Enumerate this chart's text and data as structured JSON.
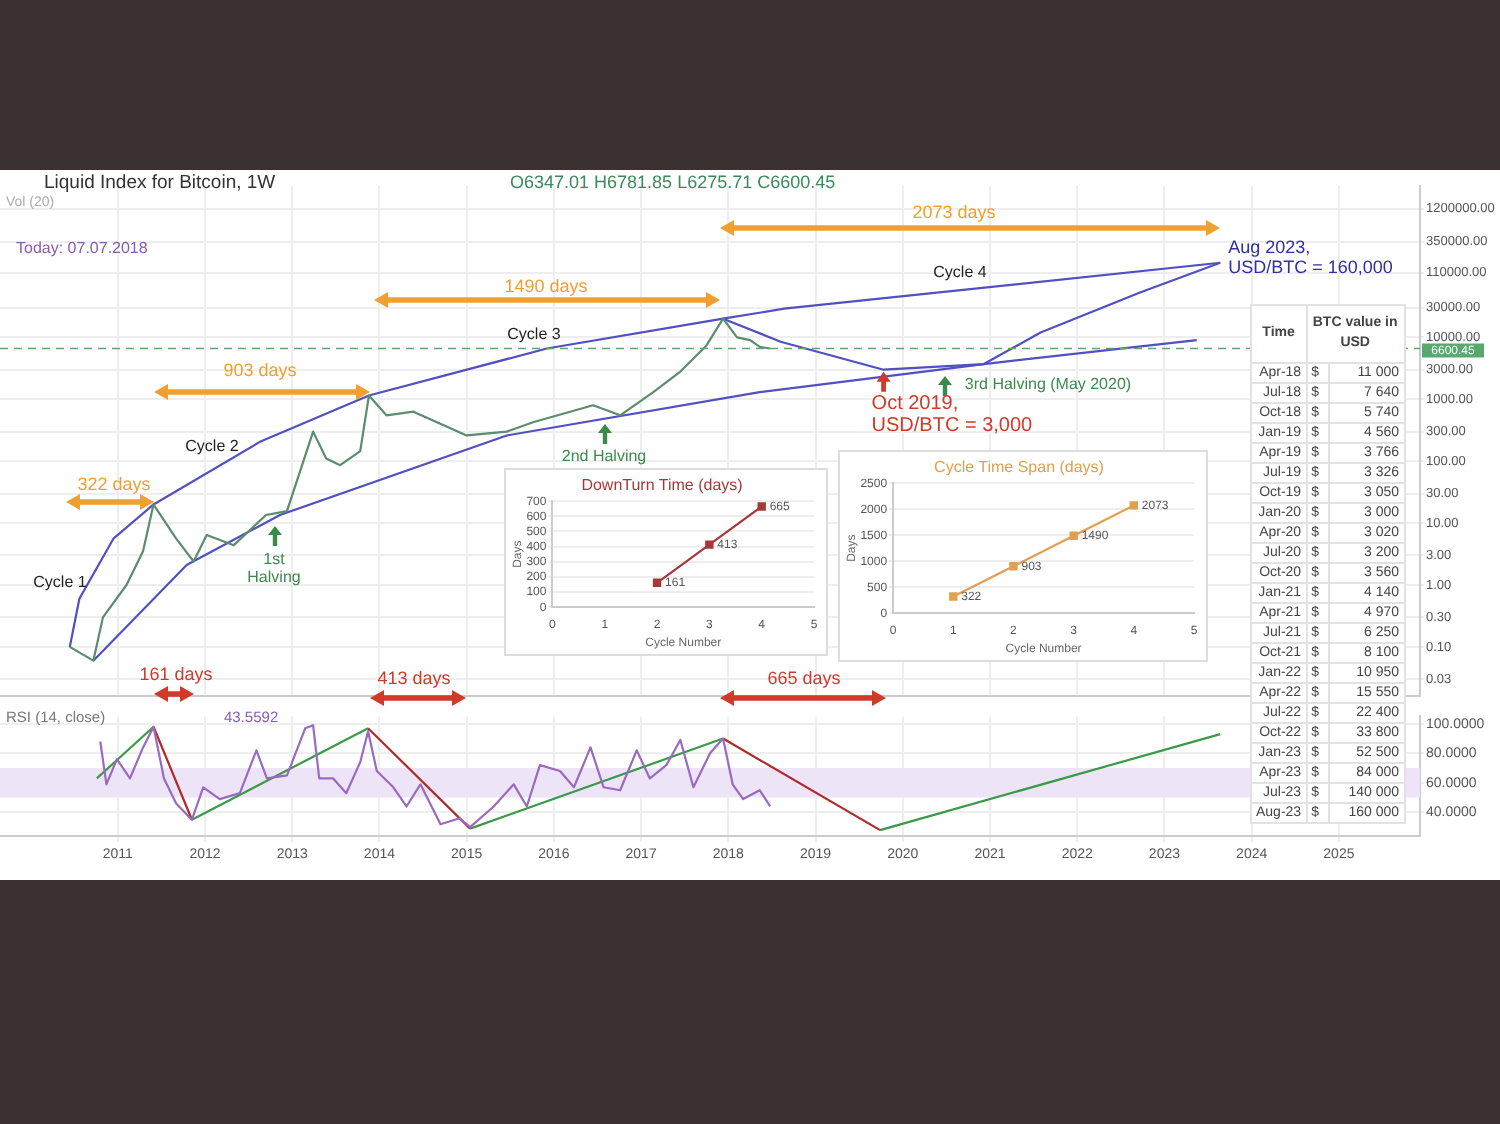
{
  "chart_data": [
    {
      "type": "line",
      "title": "Liquid Index for Bitcoin, 1W",
      "xlim": [
        2009.65,
        2025.93
      ],
      "xticks": [
        2011,
        2012,
        2013,
        2014,
        2015,
        2016,
        2017,
        2018,
        2019,
        2020,
        2021,
        2022,
        2023,
        2024,
        2025
      ],
      "ylim": [
        0.016,
        2800000
      ],
      "yticks": [
        {
          "value": 1200000,
          "label": "1200000.00"
        },
        {
          "value": 350000,
          "label": "350000.00"
        },
        {
          "value": 110000,
          "label": "110000.00"
        },
        {
          "value": 30000,
          "label": "30000.00"
        },
        {
          "value": 10000,
          "label": "10000.00"
        },
        {
          "value": 3000,
          "label": "3000.00"
        },
        {
          "value": 1000,
          "label": "1000.00"
        },
        {
          "value": 300,
          "label": "300.00"
        },
        {
          "value": 100,
          "label": "100.00"
        },
        {
          "value": 30,
          "label": "30.00"
        },
        {
          "value": 10,
          "label": "10.00"
        },
        {
          "value": 3,
          "label": "3.00"
        },
        {
          "value": 1,
          "label": "1.00"
        },
        {
          "value": 0.3,
          "label": "0.30"
        },
        {
          "value": 0.1,
          "label": "0.10"
        },
        {
          "value": 0.03,
          "label": "0.03"
        }
      ],
      "log": true,
      "grid": true,
      "tick_labels": "y",
      "marker": "none",
      "series": [
        {
          "color": "#5b8c6e",
          "x": [
            2010.45,
            2010.72,
            2010.83,
            2011.1,
            2011.29,
            2011.41,
            2011.67,
            2011.87,
            2012.02,
            2012.33,
            2012.7,
            2012.94,
            2013.24,
            2013.39,
            2013.55,
            2013.78,
            2013.88,
            2014.08,
            2014.39,
            2015.0,
            2015.46,
            2015.77,
            2016.45,
            2016.76,
            2017.14,
            2017.45,
            2017.75,
            2017.94,
            2018.1,
            2018.25,
            2018.36,
            2018.48
          ],
          "values": [
            0.1,
            0.06,
            0.3,
            1,
            3.5,
            20,
            5.6,
            2.4,
            6.4,
            4.4,
            13.5,
            15.6,
            300,
            110,
            86,
            145,
            1150,
            550,
            630,
            260,
            300,
            430,
            800,
            550,
            1300,
            2800,
            7400,
            20000,
            10000,
            9000,
            7000,
            6600
          ]
        },
        {
          "color": "#5050c0",
          "x": [
            2010.45,
            2010.56,
            2010.95,
            2011.41,
            2012.63,
            2013.88,
            2015.92,
            2017.94,
            2018.64,
            2023.64
          ],
          "values": [
            0.1,
            0.6,
            5.6,
            20,
            205,
            1150,
            6600,
            20000,
            29000,
            160000
          ]
        },
        {
          "color": "#5050c0",
          "x": [
            2010.72,
            2011.79,
            2012.86,
            2015.46,
            2018.36,
            2020.93,
            2023.37
          ],
          "values": [
            0.06,
            2.1,
            13.5,
            260,
            1300,
            3700,
            9000
          ]
        },
        {
          "color": "#5050c0",
          "x": [
            2017.94,
            2018.6,
            2019.78,
            2020.93,
            2021.58,
            2022.72,
            2023.64
          ],
          "values": [
            20000,
            8500,
            3000,
            3700,
            12000,
            53000,
            160000
          ]
        }
      ],
      "ref_lines": [
        {
          "axis": "y",
          "value": 6600.45,
          "label": "6600.45",
          "color": "#5aa870",
          "line_style": "dashed"
        }
      ],
      "annotations": [
        "O6347.01 H6781.85 L6275.71 C6600.45",
        "Vol (20)",
        "Today: 07.07.2018",
        "Cycle 1",
        "Cycle 2",
        "Cycle 3",
        "Cycle 4",
        "322 days",
        "903 days",
        "1490 days",
        "2073 days",
        "161 days",
        "413 days",
        "665 days",
        "1st\nHalving",
        "2nd Halving",
        "3rd Halving (May 2020)",
        {
          "text": "Oct 2019,\nUSD/BTC = 3,000",
          "x": 2019.78,
          "y": 3000
        },
        {
          "text": "Aug 2023,\nUSD/BTC = 160,000",
          "x": 2023.64,
          "y": 160000
        }
      ]
    },
    {
      "type": "line",
      "xlim": [
        2009.65,
        2025.93
      ],
      "xticks": [
        2011,
        2012,
        2013,
        2014,
        2015,
        2016,
        2017,
        2018,
        2019,
        2020,
        2021,
        2022,
        2023,
        2024,
        2025
      ],
      "ylim": [
        24,
        105
      ],
      "yticks": [
        {
          "value": 100,
          "label": "100.0000"
        },
        {
          "value": 80,
          "label": "80.0000"
        },
        {
          "value": 60,
          "label": "60.0000"
        },
        {
          "value": 40,
          "label": "40.0000"
        }
      ],
      "grid": true,
      "marker": "none",
      "bands": [
        {
          "axis": "y",
          "from": 50,
          "to": 70,
          "color": "#eee4f8"
        }
      ],
      "annotations": [
        "RSI (14, close)",
        "43.5592"
      ],
      "series": [
        {
          "color": "#9a6ac0",
          "x": [
            2010.8,
            2010.87,
            2010.99,
            2011.14,
            2011.29,
            2011.41,
            2011.53,
            2011.67,
            2011.85,
            2011.98,
            2012.17,
            2012.4,
            2012.59,
            2012.71,
            2012.94,
            2013.15,
            2013.24,
            2013.31,
            2013.47,
            2013.62,
            2013.78,
            2013.87,
            2013.97,
            2014.16,
            2014.31,
            2014.47,
            2014.7,
            2014.92,
            2015.04,
            2015.31,
            2015.54,
            2015.69,
            2015.84,
            2016.07,
            2016.23,
            2016.42,
            2016.57,
            2016.76,
            2016.95,
            2017.1,
            2017.29,
            2017.45,
            2017.6,
            2017.79,
            2017.94,
            2018.05,
            2018.17,
            2018.36,
            2018.48
          ],
          "values": [
            88,
            59,
            76,
            63,
            84,
            98,
            63,
            46,
            35,
            57,
            49,
            53,
            82,
            63,
            65,
            97,
            99,
            63,
            63,
            53,
            74,
            95,
            68,
            57,
            44,
            59,
            32,
            36,
            30,
            44,
            59,
            44,
            72,
            68,
            57,
            84,
            57,
            55,
            82,
            63,
            72,
            89,
            57,
            80,
            90,
            59,
            49,
            55,
            44
          ]
        },
        {
          "color": "#3a9a48",
          "x": [
            2010.76,
            2011.41
          ],
          "values": [
            63,
            98
          ]
        },
        {
          "color": "#b02a2a",
          "x": [
            2011.41,
            2011.85
          ],
          "values": [
            98,
            35
          ]
        },
        {
          "color": "#3a9a48",
          "x": [
            2011.85,
            2013.87
          ],
          "values": [
            35,
            97
          ]
        },
        {
          "color": "#b02a2a",
          "x": [
            2013.87,
            2015.04
          ],
          "values": [
            97,
            29
          ]
        },
        {
          "color": "#3a9a48",
          "x": [
            2015.04,
            2017.94
          ],
          "values": [
            29,
            90
          ]
        },
        {
          "color": "#b02a2a",
          "x": [
            2017.94,
            2019.74
          ],
          "values": [
            90,
            28
          ]
        },
        {
          "color": "#3a9a48",
          "x": [
            2019.74,
            2023.64
          ],
          "values": [
            28,
            93
          ]
        }
      ]
    },
    {
      "type": "line",
      "title": "DownTurn Time (days)",
      "xlabel": "Cycle Number",
      "ylabel": "Days",
      "x": [
        2,
        3,
        4
      ],
      "xlim": [
        0,
        5
      ],
      "xticks": [
        0,
        1,
        2,
        3,
        4,
        5
      ],
      "ylim": [
        0,
        700
      ],
      "yticks": [
        0,
        100,
        200,
        300,
        400,
        500,
        600,
        700
      ],
      "grid": "y",
      "marker": "square",
      "data_labels": true,
      "series": [
        {
          "color": "#a83838",
          "values": [
            161,
            413,
            665
          ]
        }
      ]
    },
    {
      "type": "line",
      "title": "Cycle Time Span (days)",
      "xlabel": "Cycle Number",
      "ylabel": "Days",
      "x": [
        1,
        2,
        3,
        4
      ],
      "xlim": [
        0,
        5
      ],
      "xticks": [
        0,
        1,
        2,
        3,
        4,
        5
      ],
      "ylim": [
        0,
        2500
      ],
      "yticks": [
        0,
        500,
        1000,
        1500,
        2000,
        2500
      ],
      "grid": "y",
      "marker": "square",
      "data_labels": true,
      "series": [
        {
          "color": "#e0a050",
          "values": [
            322,
            903,
            1490,
            2073
          ]
        }
      ]
    },
    {
      "type": "other",
      "annotations": [
        "Time",
        "BTC value in USD",
        "Apr-18 $ 11 000",
        "Jul-18 $ 7 640",
        "Oct-18 $ 5 740",
        "Jan-19 $ 4 560",
        "Apr-19 $ 3 766",
        "Jul-19 $ 3 326",
        "Oct-19 $ 3 050",
        "Jan-20 $ 3 000",
        "Apr-20 $ 3 020",
        "Jul-20 $ 3 200",
        "Oct-20 $ 3 560",
        "Jan-21 $ 4 140",
        "Apr-21 $ 4 970",
        "Jul-21 $ 6 250",
        "Oct-21 $ 8 100",
        "Jan-22 $ 10 950",
        "Apr-22 $ 15 550",
        "Jul-22 $ 22 400",
        "Oct-22 $ 33 800",
        "Jan-23 $ 52 500",
        "Apr-23 $ 84 000",
        "Jul-23 $ 140 000",
        "Aug-23 $ 160 000"
      ]
    }
  ]
}
